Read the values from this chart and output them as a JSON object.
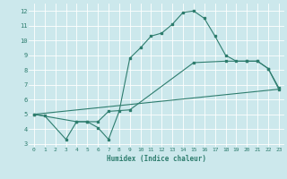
{
  "xlabel": "Humidex (Indice chaleur)",
  "ylabel": "",
  "bg_color": "#cce8ec",
  "grid_color": "#ffffff",
  "line_color": "#2e7d6e",
  "xlim": [
    -0.5,
    23.5
  ],
  "ylim": [
    2.8,
    12.5
  ],
  "xticks": [
    0,
    1,
    2,
    3,
    4,
    5,
    6,
    7,
    8,
    9,
    10,
    11,
    12,
    13,
    14,
    15,
    16,
    17,
    18,
    19,
    20,
    21,
    22,
    23
  ],
  "yticks": [
    3,
    4,
    5,
    6,
    7,
    8,
    9,
    10,
    11,
    12
  ],
  "line1_x": [
    0,
    1,
    3,
    4,
    5,
    6,
    7,
    8,
    9,
    10,
    11,
    12,
    13,
    14,
    15,
    16,
    17,
    18,
    19,
    20,
    21,
    22,
    23
  ],
  "line1_y": [
    5.0,
    4.9,
    3.3,
    4.5,
    4.5,
    4.1,
    3.3,
    5.2,
    8.8,
    9.5,
    10.3,
    10.5,
    11.1,
    11.9,
    12.0,
    11.5,
    10.3,
    9.0,
    8.6,
    8.6,
    8.6,
    8.1,
    6.8
  ],
  "line2_x": [
    0,
    4,
    5,
    6,
    7,
    9,
    15,
    18,
    20,
    21,
    22,
    23
  ],
  "line2_y": [
    5.0,
    4.5,
    4.5,
    4.5,
    5.2,
    5.3,
    8.5,
    8.6,
    8.6,
    8.6,
    8.1,
    6.7
  ],
  "line3_x": [
    0,
    23
  ],
  "line3_y": [
    5.0,
    6.7
  ]
}
